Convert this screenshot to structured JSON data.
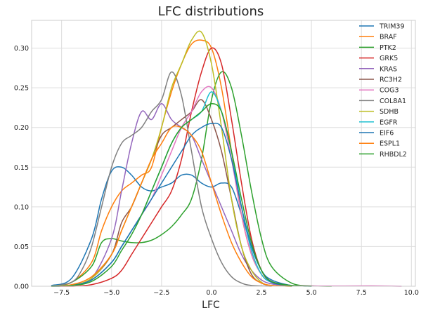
{
  "chart_data": {
    "type": "line",
    "title": "LFC distributions",
    "xlabel": "LFC",
    "ylabel": "",
    "xlim": [
      -9.0,
      10.2
    ],
    "ylim": [
      0.0,
      0.335
    ],
    "xticks": [
      -7.5,
      -5.0,
      -2.5,
      0.0,
      2.5,
      5.0,
      7.5,
      10.0
    ],
    "xtick_labels": [
      "−7.5",
      "−5.0",
      "−2.5",
      "0.0",
      "2.5",
      "5.0",
      "7.5",
      "10.0"
    ],
    "yticks": [
      0.0,
      0.05,
      0.1,
      0.15,
      0.2,
      0.25,
      0.3
    ],
    "ytick_labels": [
      "0.00",
      "0.05",
      "0.10",
      "0.15",
      "0.20",
      "0.25",
      "0.30"
    ],
    "grid": true,
    "legend_position": "top-right",
    "series": [
      {
        "name": "TRIM39",
        "color": "#1f77b4",
        "x": [
          -8,
          -7,
          -6,
          -5.5,
          -5,
          -4.5,
          -4,
          -3.5,
          -3,
          -2.5,
          -2,
          -1.5,
          -1,
          -0.5,
          0,
          0.5,
          1,
          1.5,
          2,
          2.5,
          3,
          4,
          5
        ],
        "y": [
          0.001,
          0.01,
          0.06,
          0.11,
          0.145,
          0.15,
          0.14,
          0.125,
          0.12,
          0.125,
          0.13,
          0.14,
          0.14,
          0.13,
          0.125,
          0.13,
          0.125,
          0.09,
          0.05,
          0.02,
          0.008,
          0.001,
          0
        ]
      },
      {
        "name": "BRAF",
        "color": "#ff7f0e",
        "x": [
          -8,
          -7,
          -6,
          -5.5,
          -5,
          -4.5,
          -4,
          -3.5,
          -3,
          -2.5,
          -2,
          -1.5,
          -1,
          -0.5,
          0,
          0.5,
          1,
          1.5,
          2,
          2.5,
          3,
          4
        ],
        "y": [
          0,
          0.005,
          0.03,
          0.07,
          0.1,
          0.12,
          0.13,
          0.14,
          0.15,
          0.2,
          0.245,
          0.28,
          0.305,
          0.31,
          0.3,
          0.25,
          0.17,
          0.09,
          0.04,
          0.015,
          0.005,
          0
        ]
      },
      {
        "name": "PTK2",
        "color": "#2ca02c",
        "x": [
          -8,
          -7,
          -6,
          -5.5,
          -5,
          -4.5,
          -4,
          -3.5,
          -3,
          -2.5,
          -2,
          -1.5,
          -1,
          -0.5,
          0,
          0.5,
          1,
          1.5,
          2,
          2.5,
          3,
          4,
          5,
          6
        ],
        "y": [
          0,
          0.005,
          0.025,
          0.055,
          0.06,
          0.057,
          0.055,
          0.055,
          0.058,
          0.065,
          0.075,
          0.09,
          0.11,
          0.16,
          0.235,
          0.27,
          0.25,
          0.19,
          0.12,
          0.06,
          0.025,
          0.004,
          0.0005,
          0
        ]
      },
      {
        "name": "GRK5",
        "color": "#d62728",
        "x": [
          -8,
          -7,
          -6,
          -5,
          -4.5,
          -4,
          -3.5,
          -3,
          -2.5,
          -2,
          -1.5,
          -1,
          -0.5,
          0,
          0.5,
          1,
          1.5,
          2,
          2.5,
          3,
          4
        ],
        "y": [
          0,
          0,
          0.002,
          0.01,
          0.02,
          0.04,
          0.06,
          0.08,
          0.1,
          0.12,
          0.16,
          0.22,
          0.27,
          0.3,
          0.28,
          0.21,
          0.13,
          0.06,
          0.02,
          0.006,
          0
        ]
      },
      {
        "name": "KRAS",
        "color": "#9467bd",
        "x": [
          -8,
          -7,
          -6,
          -5,
          -4.5,
          -4,
          -3.5,
          -3,
          -2.5,
          -2,
          -1.5,
          -1,
          -0.5,
          0,
          0.5,
          1,
          1.5,
          2,
          2.5,
          3,
          4
        ],
        "y": [
          0,
          0.001,
          0.01,
          0.06,
          0.12,
          0.18,
          0.22,
          0.21,
          0.23,
          0.21,
          0.2,
          0.19,
          0.16,
          0.13,
          0.1,
          0.07,
          0.04,
          0.02,
          0.008,
          0.003,
          0
        ]
      },
      {
        "name": "RC3H2",
        "color": "#8c564b",
        "x": [
          -8,
          -7,
          -6,
          -5,
          -4.5,
          -4,
          -3.5,
          -3,
          -2.5,
          -2,
          -1.5,
          -1,
          -0.5,
          0,
          0.5,
          1,
          1.5,
          2,
          2.5,
          3,
          4
        ],
        "y": [
          0,
          0.001,
          0.01,
          0.04,
          0.08,
          0.1,
          0.13,
          0.16,
          0.19,
          0.2,
          0.21,
          0.22,
          0.235,
          0.21,
          0.17,
          0.11,
          0.05,
          0.015,
          0.004,
          0.001,
          0
        ]
      },
      {
        "name": "COG3",
        "color": "#e377c2",
        "x": [
          -8,
          -7,
          -6,
          -5,
          -4.5,
          -4,
          -3.5,
          -3,
          -2.5,
          -2,
          -1.5,
          -1,
          -0.5,
          0,
          0.5,
          1,
          1.5,
          2,
          2.5,
          3,
          4,
          6,
          8,
          9.5
        ],
        "y": [
          0,
          0.001,
          0.008,
          0.03,
          0.05,
          0.07,
          0.09,
          0.11,
          0.14,
          0.17,
          0.2,
          0.22,
          0.245,
          0.25,
          0.22,
          0.16,
          0.09,
          0.04,
          0.015,
          0.005,
          0.001,
          0.0003,
          0.0005,
          0
        ]
      },
      {
        "name": "COL8A1",
        "color": "#7f7f7f",
        "x": [
          -8,
          -7,
          -6.5,
          -6,
          -5.5,
          -5,
          -4.5,
          -4,
          -3.5,
          -3,
          -2.5,
          -2,
          -1.5,
          -1,
          -0.5,
          0,
          0.5,
          1,
          1.5,
          2,
          3
        ],
        "y": [
          0,
          0.005,
          0.02,
          0.05,
          0.1,
          0.15,
          0.18,
          0.19,
          0.2,
          0.22,
          0.235,
          0.27,
          0.24,
          0.17,
          0.1,
          0.06,
          0.03,
          0.012,
          0.004,
          0.001,
          0
        ]
      },
      {
        "name": "SDHB",
        "color": "#bcbd22",
        "x": [
          -8,
          -7,
          -6,
          -5,
          -4.5,
          -4,
          -3.5,
          -3,
          -2.5,
          -2,
          -1.5,
          -1,
          -0.5,
          0,
          0.5,
          1,
          1.5,
          2,
          2.5,
          3,
          4
        ],
        "y": [
          0,
          0.001,
          0.01,
          0.04,
          0.07,
          0.1,
          0.13,
          0.16,
          0.2,
          0.25,
          0.28,
          0.31,
          0.32,
          0.28,
          0.2,
          0.11,
          0.05,
          0.02,
          0.005,
          0.001,
          0
        ]
      },
      {
        "name": "EGFR",
        "color": "#17becf",
        "x": [
          -8,
          -7,
          -6,
          -5,
          -4.5,
          -4,
          -3.5,
          -3,
          -2.5,
          -2,
          -1.5,
          -1,
          -0.5,
          0,
          0.5,
          1,
          1.5,
          2,
          2.5,
          3,
          4
        ],
        "y": [
          0,
          0.001,
          0.008,
          0.03,
          0.05,
          0.07,
          0.09,
          0.12,
          0.15,
          0.18,
          0.2,
          0.21,
          0.22,
          0.245,
          0.22,
          0.17,
          0.1,
          0.045,
          0.015,
          0.005,
          0
        ]
      },
      {
        "name": "EIF6",
        "color": "#1f77b4",
        "x": [
          -8,
          -7,
          -6,
          -5,
          -4.5,
          -4,
          -3.5,
          -3,
          -2.5,
          -2,
          -1.5,
          -1,
          -0.5,
          0,
          0.5,
          1,
          1.5,
          2,
          2.5,
          3,
          4
        ],
        "y": [
          0,
          0.001,
          0.008,
          0.03,
          0.05,
          0.07,
          0.09,
          0.11,
          0.13,
          0.15,
          0.17,
          0.19,
          0.2,
          0.205,
          0.2,
          0.16,
          0.1,
          0.05,
          0.02,
          0.005,
          0
        ]
      },
      {
        "name": "ESPL1",
        "color": "#ff7f0e",
        "x": [
          -8,
          -7,
          -6,
          -5,
          -4.5,
          -4,
          -3.5,
          -3,
          -2.5,
          -2,
          -1.5,
          -1,
          -0.5,
          0,
          0.5,
          1,
          1.5,
          2,
          2.5,
          3,
          4
        ],
        "y": [
          0,
          0.002,
          0.012,
          0.04,
          0.07,
          0.1,
          0.13,
          0.16,
          0.18,
          0.2,
          0.2,
          0.19,
          0.17,
          0.13,
          0.09,
          0.055,
          0.03,
          0.012,
          0.004,
          0.001,
          0
        ]
      },
      {
        "name": "RHBDL2",
        "color": "#2ca02c",
        "x": [
          -8,
          -7,
          -6,
          -5,
          -4.5,
          -4,
          -3.5,
          -3,
          -2.5,
          -2,
          -1.5,
          -1,
          -0.5,
          0,
          0.5,
          1,
          1.5,
          2,
          2.5,
          3,
          4,
          5
        ],
        "y": [
          0,
          0.001,
          0.006,
          0.025,
          0.045,
          0.065,
          0.09,
          0.12,
          0.15,
          0.18,
          0.2,
          0.21,
          0.22,
          0.23,
          0.22,
          0.17,
          0.11,
          0.055,
          0.02,
          0.006,
          0.001,
          0
        ]
      }
    ]
  }
}
